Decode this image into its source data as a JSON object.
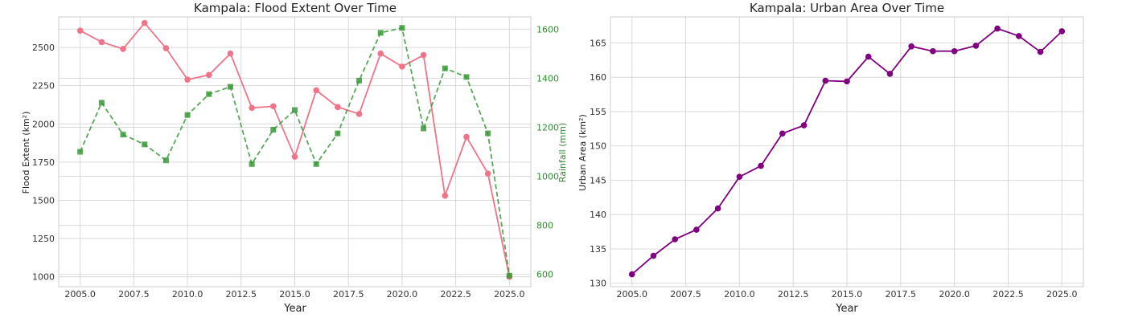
{
  "chart_data": [
    {
      "type": "line",
      "title": "Kampala: Flood Extent Over Time",
      "xlabel": "Year",
      "ylabel": "Flood Extent (km²)",
      "y2label": "Rainfall (mm)",
      "xlim": [
        2004.0,
        2026.0
      ],
      "ylim": [
        935,
        2700
      ],
      "y2lim": [
        550,
        1650
      ],
      "xticks": [
        "2005.0",
        "2007.5",
        "2010.0",
        "2012.5",
        "2015.0",
        "2017.5",
        "2020.0",
        "2022.5",
        "2025.0"
      ],
      "yticks": [
        "1000",
        "1250",
        "1500",
        "1750",
        "2000",
        "2250",
        "2500"
      ],
      "y2ticks": [
        "600",
        "800",
        "1000",
        "1200",
        "1400",
        "1600"
      ],
      "grid": true,
      "x": [
        2005,
        2006,
        2007,
        2008,
        2009,
        2010,
        2011,
        2012,
        2013,
        2014,
        2015,
        2016,
        2017,
        2018,
        2019,
        2020,
        2021,
        2022,
        2023,
        2024,
        2025
      ],
      "series": [
        {
          "axis": "left",
          "color": "#f07388",
          "line_style": "solid",
          "marker": "circle",
          "values": [
            2610,
            2535,
            2490,
            2660,
            2495,
            2290,
            2320,
            2460,
            2105,
            2115,
            1785,
            2220,
            2110,
            2065,
            2460,
            2375,
            2450,
            1530,
            1915,
            1675,
            1000
          ]
        },
        {
          "axis": "right",
          "color": "#3a9a3a",
          "line_style": "dashed",
          "marker": "square",
          "values": [
            1100,
            1300,
            1170,
            1130,
            1065,
            1250,
            1335,
            1365,
            1050,
            1190,
            1270,
            1050,
            1175,
            1390,
            1585,
            1605,
            1195,
            1440,
            1405,
            1175,
            595
          ]
        }
      ]
    },
    {
      "type": "line",
      "title": "Kampala: Urban Area Over Time",
      "xlabel": "Year",
      "ylabel": "Urban Area (km²)",
      "xlim": [
        2004.0,
        2026.0
      ],
      "ylim": [
        129.5,
        168.8
      ],
      "xticks": [
        "2005.0",
        "2007.5",
        "2010.0",
        "2012.5",
        "2015.0",
        "2017.5",
        "2020.0",
        "2022.5",
        "2025.0"
      ],
      "yticks": [
        "130",
        "135",
        "140",
        "145",
        "150",
        "155",
        "160",
        "165"
      ],
      "grid": true,
      "x": [
        2005,
        2006,
        2007,
        2008,
        2009,
        2010,
        2011,
        2012,
        2013,
        2014,
        2015,
        2016,
        2017,
        2018,
        2019,
        2020,
        2021,
        2022,
        2023,
        2024,
        2025
      ],
      "series": [
        {
          "color": "#800080",
          "line_style": "solid",
          "marker": "circle",
          "values": [
            131.3,
            134.0,
            136.4,
            137.8,
            140.9,
            145.5,
            147.1,
            151.8,
            153.0,
            159.5,
            159.4,
            163.0,
            160.5,
            164.5,
            163.8,
            163.8,
            164.6,
            167.1,
            166.0,
            163.7,
            166.7
          ]
        }
      ]
    }
  ]
}
